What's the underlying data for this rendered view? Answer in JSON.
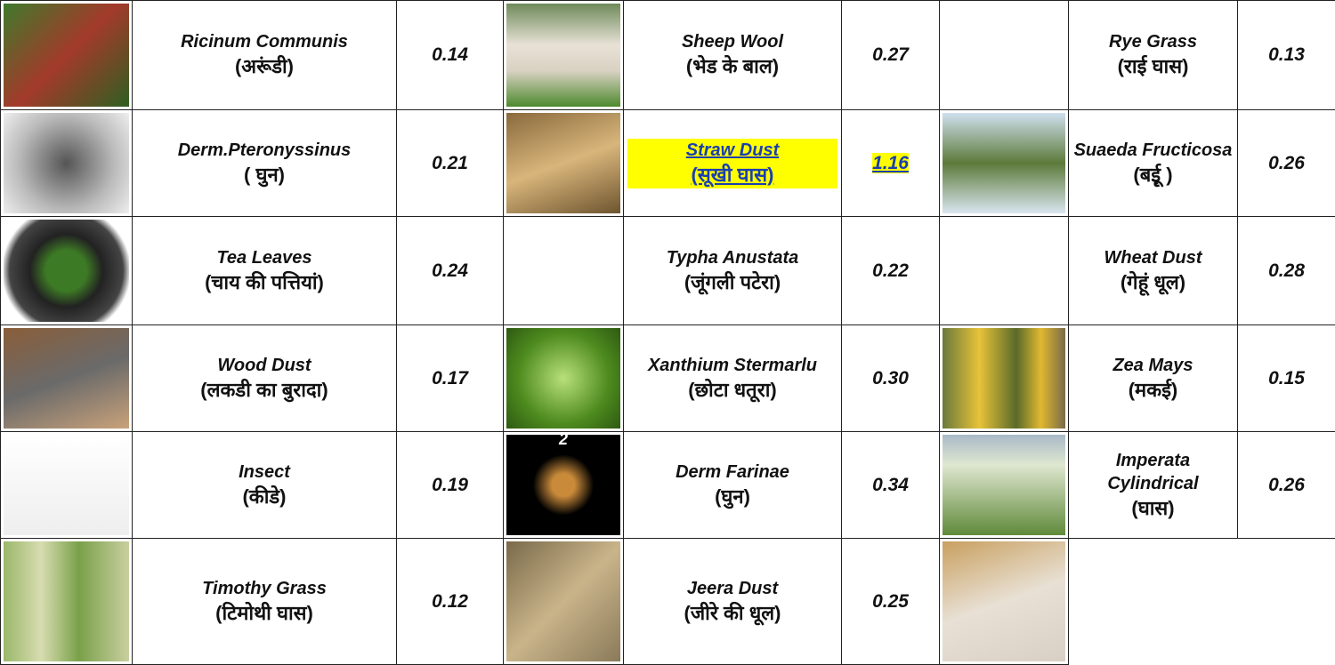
{
  "table": {
    "rows": [
      [
        {
          "name": "Ricinum Communis",
          "local": "(अरूंडी)",
          "value": "0.14"
        },
        {
          "name": "Sheep Wool",
          "local": "(भेड के बाल)",
          "value": "0.27"
        },
        {
          "name": "Rye Grass",
          "local": "(राई घास)",
          "value": "0.13"
        }
      ],
      [
        {
          "name": "Derm.Pteronyssinus",
          "local": "( घुन)",
          "value": "0.21"
        },
        {
          "name": "Straw Dust",
          "local": "(सूखी घास)",
          "value": "1.16"
        },
        {
          "name": "Suaeda Fructicosa",
          "local": "(बईू )",
          "value": "0.26"
        }
      ],
      [
        {
          "name": "Tea Leaves",
          "local": "(चाय की पत्तियां)",
          "value": "0.24"
        },
        {
          "name": "Typha Anustata",
          "local": "(जूंगली पटेरा)",
          "value": "0.22"
        },
        {
          "name": "Wheat Dust",
          "local": "(गेहूं धूल)",
          "value": "0.28"
        }
      ],
      [
        {
          "name": "Wood Dust",
          "local": "(लकडी का बुरादा)",
          "value": "0.17"
        },
        {
          "name": "Xanthium Stermarlu",
          "local": "(छोटा धतूरा)",
          "value": "0.30"
        },
        {
          "name": "Zea Mays",
          "local": "(मकई)",
          "value": "0.15"
        }
      ],
      [
        {
          "name": "Insect",
          "local": "(कीडे)",
          "value": "0.19"
        },
        {
          "name": "Derm Farinae",
          "local": "(घुन)",
          "value": "0.34"
        },
        {
          "name": "Imperata Cylindrical",
          "local": "(घास)",
          "value": "0.26"
        }
      ],
      [
        {
          "name": "Timothy Grass",
          "local": "(टिमोथी घास)",
          "value": "0.12"
        },
        {
          "name": "Jeera Dust",
          "local": "(जीरे की धूल)",
          "value": "0.25"
        },
        null
      ]
    ],
    "image_label": "2"
  }
}
